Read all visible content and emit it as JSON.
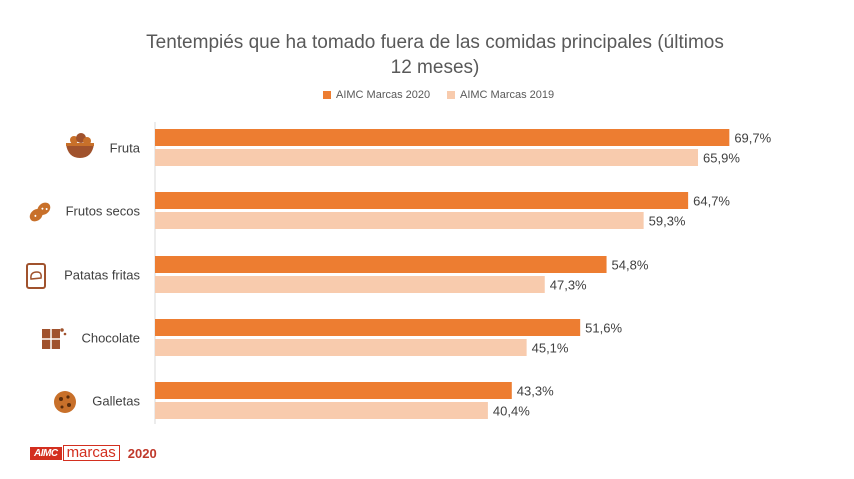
{
  "chart_data": {
    "type": "bar",
    "orientation": "horizontal",
    "title": "Tentempiés que ha tomado fuera de las comidas principales (últimos 12 meses)",
    "title_lines": [
      "Tentempiés que ha tomado fuera de las comidas principales (últimos",
      "12 meses)"
    ],
    "categories": [
      "Fruta",
      "Frutos secos",
      "Patatas fritas",
      "Chocolate",
      "Galletas"
    ],
    "category_icons": [
      "fruit-bowl-icon",
      "peanut-icon",
      "chips-bag-icon",
      "chocolate-icon",
      "cookie-icon"
    ],
    "series": [
      {
        "name": "AIMC Marcas 2020",
        "values": [
          69.7,
          64.7,
          54.8,
          51.6,
          43.3
        ],
        "labels": [
          "69,7%",
          "64,7%",
          "54,8%",
          "51,6%",
          "43,3%"
        ],
        "color": "#ed7d31"
      },
      {
        "name": "AIMC Marcas 2019",
        "values": [
          65.9,
          59.3,
          47.3,
          45.1,
          40.4
        ],
        "labels": [
          "65,9%",
          "59,3%",
          "47,3%",
          "45,1%",
          "40,4%"
        ],
        "color": "#f8cbad"
      }
    ],
    "xlim": [
      0,
      100
    ],
    "grid": false,
    "legend_position": "top"
  },
  "logo": {
    "aimc": "AIMC",
    "marcas": "marcas",
    "year": "2020"
  }
}
